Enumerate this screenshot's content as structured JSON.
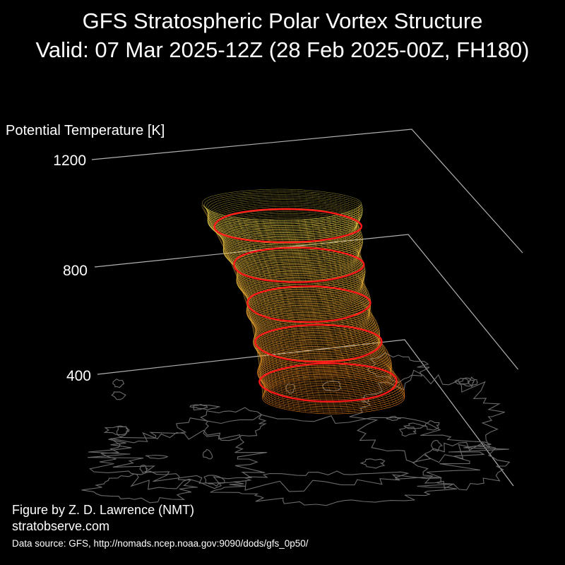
{
  "header": {
    "title": "GFS Stratospheric Polar Vortex Structure",
    "subtitle": "Valid: 07 Mar 2025-12Z  (28 Feb 2025-00Z, FH180)"
  },
  "chart_data": {
    "type": "3d-isosurface",
    "zlabel": "Potential Temperature [K]",
    "zticks": [
      400,
      800,
      1200
    ],
    "ztick_labels": [
      "400",
      "800",
      "1200"
    ],
    "zlim": [
      0,
      1200
    ],
    "highlight_levels": [
      400,
      550,
      700,
      850,
      1000
    ],
    "colors": {
      "background": "#000000",
      "axes": "#b0b0b0",
      "highlight_contour": "#ff1a1a",
      "isosurface_low": "#e87a1a",
      "isosurface_high": "#f0e050",
      "coastline": "#6a6a6a"
    }
  },
  "credits": {
    "author": "Figure by Z. D. Lawrence (NMT)",
    "site": "stratobserve.com",
    "source": "Data source: GFS, http://nomads.ncep.noaa.gov:9090/dods/gfs_0p50/"
  }
}
